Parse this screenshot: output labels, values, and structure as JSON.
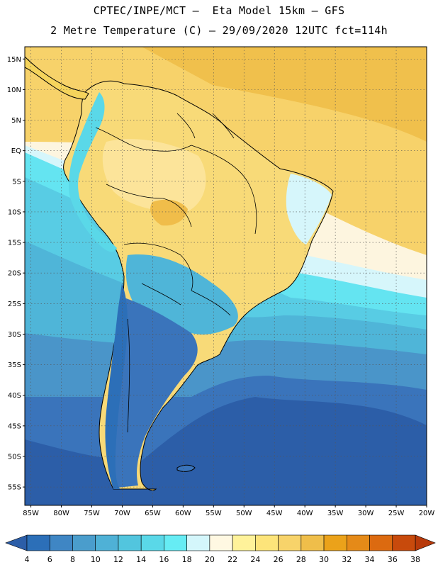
{
  "header": {
    "title_line1": "CPTEC/INPE/MCT –  Eta Model 15km – GFS",
    "title_line2": "2 Metre Temperature (C) – 29/09/2020 12UTC fct=114h"
  },
  "map": {
    "lon_range": [
      -86,
      -20
    ],
    "lat_range": [
      17,
      -58
    ],
    "lat_ticks": [
      {
        "value": 15,
        "label": "15N"
      },
      {
        "value": 10,
        "label": "10N"
      },
      {
        "value": 5,
        "label": "5N"
      },
      {
        "value": 0,
        "label": "EQ"
      },
      {
        "value": -5,
        "label": "5S"
      },
      {
        "value": -10,
        "label": "10S"
      },
      {
        "value": -15,
        "label": "15S"
      },
      {
        "value": -20,
        "label": "20S"
      },
      {
        "value": -25,
        "label": "25S"
      },
      {
        "value": -30,
        "label": "30S"
      },
      {
        "value": -35,
        "label": "35S"
      },
      {
        "value": -40,
        "label": "40S"
      },
      {
        "value": -45,
        "label": "45S"
      },
      {
        "value": -50,
        "label": "50S"
      },
      {
        "value": -55,
        "label": "55S"
      }
    ],
    "lon_ticks": [
      {
        "value": -85,
        "label": "85W"
      },
      {
        "value": -80,
        "label": "80W"
      },
      {
        "value": -75,
        "label": "75W"
      },
      {
        "value": -70,
        "label": "70W"
      },
      {
        "value": -65,
        "label": "65W"
      },
      {
        "value": -60,
        "label": "60W"
      },
      {
        "value": -55,
        "label": "55W"
      },
      {
        "value": -50,
        "label": "50W"
      },
      {
        "value": -45,
        "label": "45W"
      },
      {
        "value": -40,
        "label": "40W"
      },
      {
        "value": -35,
        "label": "35W"
      },
      {
        "value": -30,
        "label": "30W"
      },
      {
        "value": -25,
        "label": "25W"
      },
      {
        "value": -20,
        "label": "20W"
      }
    ],
    "grid": true
  },
  "colorbar": {
    "levels": [
      "4",
      "6",
      "8",
      "10",
      "12",
      "14",
      "16",
      "18",
      "20",
      "22",
      "24",
      "26",
      "28",
      "30",
      "32",
      "34",
      "36",
      "38"
    ],
    "colors": [
      "#2c6fb8",
      "#3f86c4",
      "#4a9dcc",
      "#4fb1d6",
      "#52c5de",
      "#5ad8e8",
      "#66ecf4",
      "#d4f6fb",
      "#fff8e2",
      "#fff29a",
      "#fde47a",
      "#f7d36a",
      "#efbe4a",
      "#eba21a",
      "#e58a18",
      "#dc6a10",
      "#c84a0c"
    ],
    "low_color": "#2c5ea8",
    "high_color": "#b83a0a"
  }
}
